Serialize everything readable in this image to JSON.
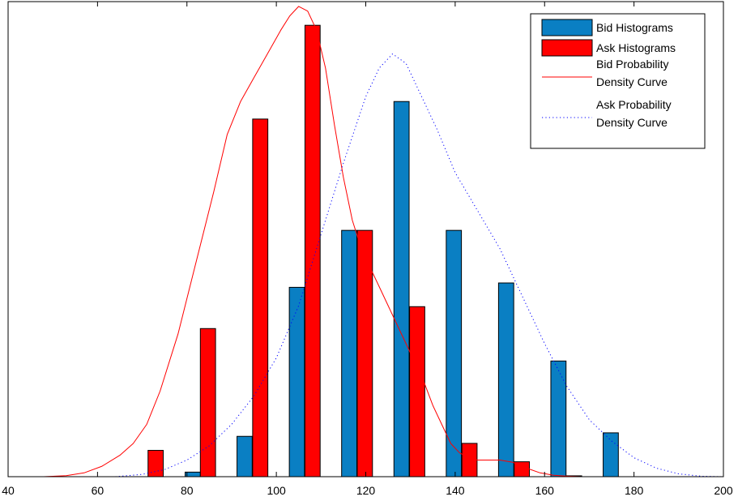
{
  "chart_data": {
    "type": "bar",
    "title": "",
    "xlabel": "",
    "ylabel": "",
    "xlim": [
      40,
      200
    ],
    "ylim": [
      0,
      1
    ],
    "x_ticks": [
      40,
      60,
      80,
      100,
      120,
      140,
      160,
      180,
      200
    ],
    "y_ticks_shown": false,
    "grid": false,
    "legend_position": "top-right",
    "bar_width": 3.4,
    "series": [
      {
        "name": "Bid Histograms",
        "kind": "bar",
        "color": "#0a7fc3",
        "x": [
          81.3,
          92.9,
          104.6,
          116.3,
          128.0,
          139.7,
          151.4,
          163.1,
          174.8
        ],
        "values": [
          0.0096,
          0.0849,
          0.3986,
          0.5185,
          0.7897,
          0.5185,
          0.4078,
          0.2435,
          0.0923
        ]
      },
      {
        "name": "Ask Histograms",
        "kind": "bar",
        "color": "#ff0000",
        "x": [
          73.0,
          84.7,
          96.4,
          108.1,
          119.8,
          131.5,
          143.2,
          154.9,
          166.6
        ],
        "values": [
          0.0554,
          0.3118,
          0.7528,
          0.9502,
          0.5185,
          0.3579,
          0.0701,
          0.0314,
          0.0018
        ]
      },
      {
        "name": "Bid Probability Density Curve",
        "kind": "line",
        "style": "solid",
        "color": "#ff0000",
        "x": [
          48,
          53,
          57,
          61,
          65,
          68,
          71,
          74,
          78,
          82,
          86,
          89,
          92,
          95,
          98,
          101,
          103,
          105,
          107,
          109,
          111,
          113,
          115,
          117,
          119,
          121,
          123,
          125,
          127,
          129,
          131,
          133,
          135,
          137,
          139,
          141,
          143,
          145,
          147,
          150,
          153,
          156,
          159,
          162,
          165,
          168
        ],
        "values": [
          0.0,
          0.002,
          0.008,
          0.022,
          0.045,
          0.07,
          0.11,
          0.18,
          0.3,
          0.45,
          0.6,
          0.72,
          0.79,
          0.84,
          0.89,
          0.94,
          0.97,
          0.99,
          0.98,
          0.94,
          0.86,
          0.74,
          0.63,
          0.54,
          0.48,
          0.44,
          0.4,
          0.36,
          0.32,
          0.28,
          0.24,
          0.2,
          0.15,
          0.11,
          0.07,
          0.05,
          0.04,
          0.035,
          0.035,
          0.035,
          0.03,
          0.018,
          0.008,
          0.003,
          0.001,
          0.0
        ]
      },
      {
        "name": "Ask Probability Density Curve",
        "kind": "line",
        "style": "dotted",
        "color": "#0000ff",
        "x": [
          64,
          70,
          75,
          80,
          85,
          90,
          95,
          100,
          105,
          110,
          115,
          120,
          123,
          126,
          129,
          132,
          136,
          140,
          145,
          150,
          155,
          160,
          165,
          170,
          175,
          180,
          185,
          190,
          195,
          200
        ],
        "values": [
          0.0,
          0.005,
          0.015,
          0.035,
          0.065,
          0.11,
          0.17,
          0.25,
          0.36,
          0.51,
          0.66,
          0.8,
          0.86,
          0.89,
          0.87,
          0.81,
          0.73,
          0.64,
          0.56,
          0.48,
          0.38,
          0.28,
          0.19,
          0.12,
          0.075,
          0.04,
          0.018,
          0.006,
          0.001,
          0.0
        ]
      }
    ]
  },
  "legend": {
    "items": [
      {
        "kind": "patch",
        "color": "#0a7fc3",
        "lines": [
          "Bid Histograms"
        ]
      },
      {
        "kind": "patch",
        "color": "#ff0000",
        "lines": [
          "Ask Histograms"
        ]
      },
      {
        "kind": "line-solid",
        "color": "#ff0000",
        "lines": [
          "Bid Probability",
          "Density Curve"
        ]
      },
      {
        "kind": "line-dotted",
        "color": "#0000ff",
        "lines": [
          "Ask Probability",
          "Density Curve"
        ]
      }
    ]
  }
}
